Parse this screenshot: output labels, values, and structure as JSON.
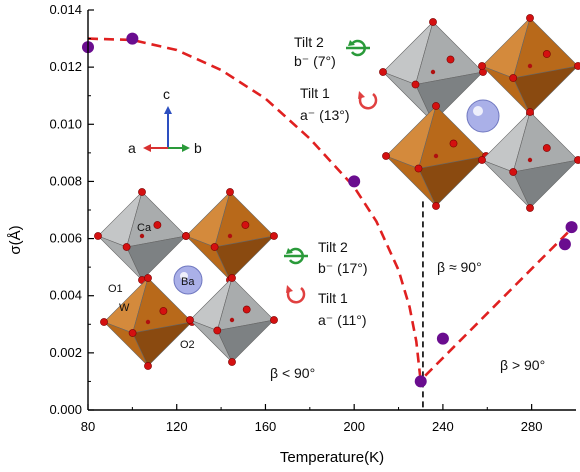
{
  "chart_data": {
    "type": "scatter",
    "xlabel": "Temperature(K)",
    "ylabel": "σ(Å)",
    "xlim": [
      80,
      300
    ],
    "ylim": [
      0,
      0.014
    ],
    "x_ticks": [
      "80",
      "120",
      "160",
      "200",
      "240",
      "280"
    ],
    "y_ticks": [
      "0.000",
      "0.002",
      "0.004",
      "0.006",
      "0.008",
      "0.010",
      "0.012",
      "0.014"
    ],
    "grid": false,
    "series": [
      {
        "values": [
          {
            "x": 80,
            "y": 0.0127
          },
          {
            "x": 100,
            "y": 0.013
          },
          {
            "x": 200,
            "y": 0.008
          },
          {
            "x": 230,
            "y": 0.001
          },
          {
            "x": 240,
            "y": 0.0025
          },
          {
            "x": 295,
            "y": 0.0058
          },
          {
            "x": 298,
            "y": 0.0064
          }
        ]
      }
    ],
    "fit_curves": [
      {
        "x": [
          80,
          100,
          120,
          140,
          160,
          180,
          200,
          210,
          220,
          225,
          228,
          230
        ],
        "y": [
          0.013,
          0.01295,
          0.0126,
          0.0119,
          0.0109,
          0.0095,
          0.0078,
          0.0066,
          0.0049,
          0.0036,
          0.0024,
          0.001
        ]
      },
      {
        "x": [
          232,
          300
        ],
        "y": [
          0.0012,
          0.0065
        ]
      }
    ],
    "transition_x": 231,
    "annotations": {
      "beta_mid": "β ≈ 90°",
      "beta_low": "β < 90°",
      "beta_high": "β > 90°",
      "upper_tilt2": "Tilt 2",
      "upper_tilt2_val": "b⁻ (7°)",
      "upper_tilt1": "Tilt 1",
      "upper_tilt1_val": "a⁻ (13°)",
      "lower_tilt2": "Tilt 2",
      "lower_tilt2_val": "b⁻ (17°)",
      "lower_tilt1": "Tilt 1",
      "lower_tilt1_val": "a⁻ (11°)",
      "axis_a": "a",
      "axis_b": "b",
      "axis_c": "c",
      "label_ca": "Ca",
      "label_ba": "Ba",
      "label_w": "W",
      "label_o1": "O1",
      "label_o2": "O2"
    },
    "colors": {
      "points": "#6a0d8f",
      "fit": "#e02020",
      "octa_gray": "#a9acad",
      "octa_orange": "#b8691a",
      "oxygen": "#d41010",
      "ba": "#aab0e8",
      "axis_c": "#2d4fc0",
      "axis_a": "#d83030",
      "axis_b": "#2a9a3a",
      "rot_green": "#2a9a3a",
      "rot_red": "#e04040"
    }
  }
}
